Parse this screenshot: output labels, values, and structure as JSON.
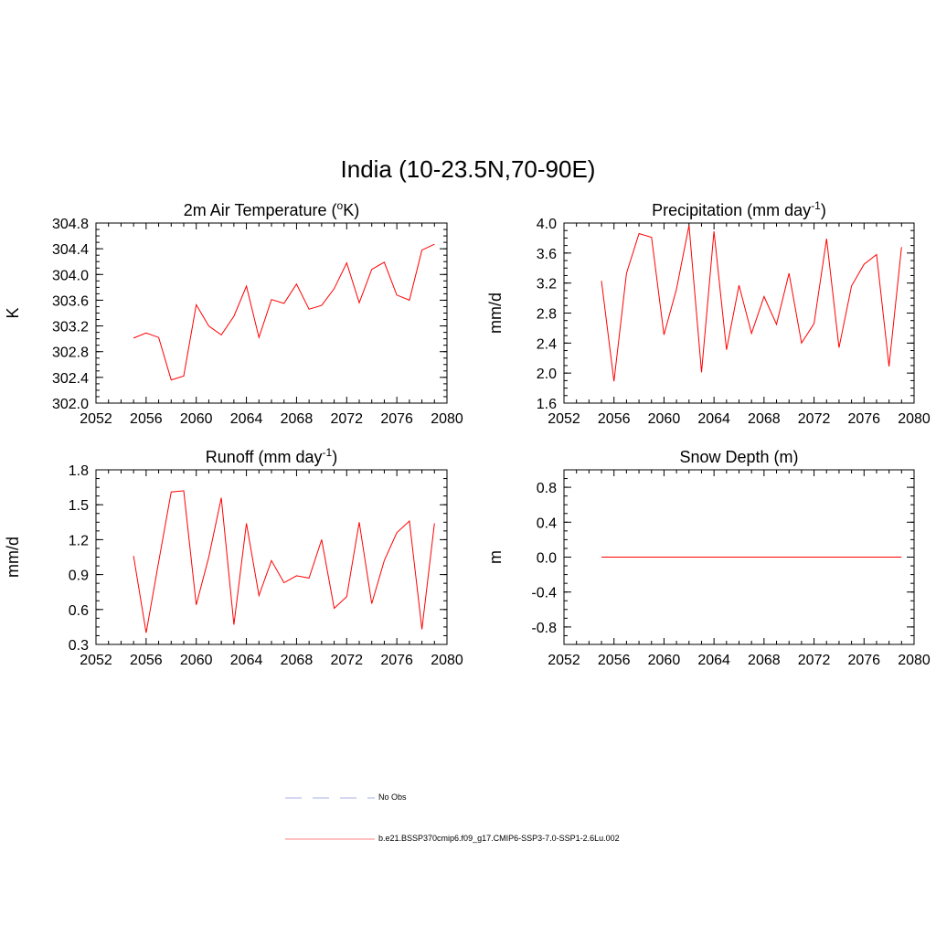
{
  "figure": {
    "title": "India (10-23.5N,70-90E)"
  },
  "legend": {
    "items": [
      {
        "label": "No Obs",
        "color": "#aab0e8",
        "style": "dashed"
      },
      {
        "label": "b.e21.BSSP370cmip6.f09_g17.CMIP6-SSP3-7.0-SSP1-2.6Lu.002",
        "color": "#ff8080",
        "style": "solid"
      }
    ]
  },
  "chart_data": [
    {
      "type": "line",
      "title": "2m Air Temperature (°K)",
      "title_parts": [
        "2m Air Temperature (",
        "o",
        "K)"
      ],
      "ylabel": "K",
      "xlim": [
        2052,
        2080
      ],
      "ylim": [
        302.0,
        304.8
      ],
      "xticks": [
        "2052",
        "2056",
        "2060",
        "2064",
        "2068",
        "2072",
        "2076",
        "2080"
      ],
      "yticks": [
        "302.0",
        "302.4",
        "302.8",
        "303.2",
        "303.6",
        "304.0",
        "304.4",
        "304.8"
      ],
      "series": [
        {
          "color": "#ff0000",
          "x": [
            2055,
            2056,
            2057,
            2058,
            2059,
            2060,
            2061,
            2062,
            2063,
            2064,
            2065,
            2066,
            2067,
            2068,
            2069,
            2070,
            2071,
            2072,
            2073,
            2074,
            2075,
            2076,
            2077,
            2078,
            2079
          ],
          "values": [
            303.01,
            303.09,
            303.02,
            302.36,
            302.42,
            303.53,
            303.2,
            303.06,
            303.35,
            303.82,
            303.02,
            303.61,
            303.55,
            303.85,
            303.46,
            303.52,
            303.78,
            304.18,
            303.56,
            304.08,
            304.19,
            303.68,
            303.6,
            304.38,
            304.47
          ]
        }
      ]
    },
    {
      "type": "line",
      "title": "Precipitation (mm day-1)",
      "title_parts": [
        "Precipitation (mm day",
        "-1",
        ")"
      ],
      "ylabel": "mm/d",
      "xlim": [
        2052,
        2080
      ],
      "ylim": [
        1.6,
        4.0
      ],
      "xticks": [
        "2052",
        "2056",
        "2060",
        "2064",
        "2068",
        "2072",
        "2076",
        "2080"
      ],
      "yticks": [
        "1.6",
        "2.0",
        "2.4",
        "2.8",
        "3.2",
        "3.6",
        "4.0"
      ],
      "series": [
        {
          "color": "#ff0000",
          "x": [
            2055,
            2056,
            2057,
            2058,
            2059,
            2060,
            2061,
            2062,
            2063,
            2064,
            2065,
            2066,
            2067,
            2068,
            2069,
            2070,
            2071,
            2072,
            2073,
            2074,
            2075,
            2076,
            2077,
            2078,
            2079
          ],
          "values": [
            3.23,
            1.89,
            3.33,
            3.86,
            3.81,
            2.51,
            3.12,
            3.97,
            2.01,
            3.89,
            2.31,
            3.17,
            2.53,
            3.02,
            2.65,
            3.33,
            2.4,
            2.66,
            3.79,
            2.34,
            3.16,
            3.45,
            3.58,
            2.09,
            3.68
          ]
        }
      ]
    },
    {
      "type": "line",
      "title": "Runoff (mm day-1)",
      "title_parts": [
        "Runoff (mm day",
        "-1",
        ")"
      ],
      "ylabel": "mm/d",
      "xlim": [
        2052,
        2080
      ],
      "ylim": [
        0.3,
        1.8
      ],
      "xticks": [
        "2052",
        "2056",
        "2060",
        "2064",
        "2068",
        "2072",
        "2076",
        "2080"
      ],
      "yticks": [
        "0.3",
        "0.6",
        "0.9",
        "1.2",
        "1.5",
        "1.8"
      ],
      "series": [
        {
          "color": "#ff0000",
          "x": [
            2055,
            2056,
            2057,
            2058,
            2059,
            2060,
            2061,
            2062,
            2063,
            2064,
            2065,
            2066,
            2067,
            2068,
            2069,
            2070,
            2071,
            2072,
            2073,
            2074,
            2075,
            2076,
            2077,
            2078,
            2079
          ],
          "values": [
            1.06,
            0.4,
            1.01,
            1.61,
            1.62,
            0.64,
            1.05,
            1.56,
            0.47,
            1.34,
            0.72,
            1.02,
            0.83,
            0.89,
            0.87,
            1.2,
            0.61,
            0.71,
            1.35,
            0.65,
            1.02,
            1.26,
            1.36,
            0.43,
            1.34
          ]
        }
      ]
    },
    {
      "type": "line",
      "title": "Snow Depth (m)",
      "title_parts": [
        "Snow Depth (m)",
        "",
        ""
      ],
      "ylabel": "m",
      "xlim": [
        2052,
        2080
      ],
      "ylim": [
        -1.0,
        1.0
      ],
      "xticks": [
        "2052",
        "2056",
        "2060",
        "2064",
        "2068",
        "2072",
        "2076",
        "2080"
      ],
      "yticks": [
        "-0.8",
        "-0.4",
        "0.0",
        "0.4",
        "0.8"
      ],
      "ytick_values": [
        -0.8,
        -0.4,
        0.0,
        0.4,
        0.8
      ],
      "series": [
        {
          "color": "#ff0000",
          "x": [
            2055,
            2056,
            2057,
            2058,
            2059,
            2060,
            2061,
            2062,
            2063,
            2064,
            2065,
            2066,
            2067,
            2068,
            2069,
            2070,
            2071,
            2072,
            2073,
            2074,
            2075,
            2076,
            2077,
            2078,
            2079
          ],
          "values": [
            0,
            0,
            0,
            0,
            0,
            0,
            0,
            0,
            0,
            0,
            0,
            0,
            0,
            0,
            0,
            0,
            0,
            0,
            0,
            0,
            0,
            0,
            0,
            0,
            0
          ]
        }
      ]
    }
  ]
}
